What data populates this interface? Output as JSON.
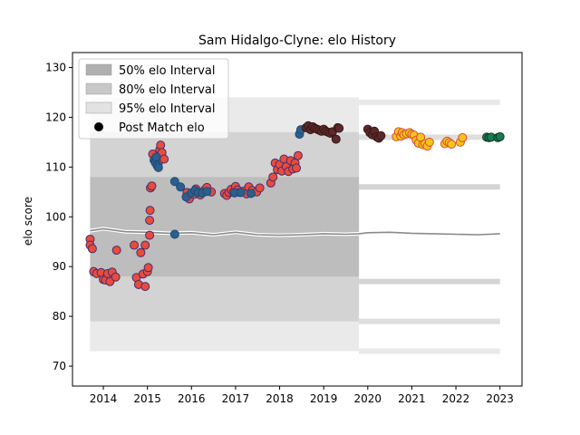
{
  "chart_data": {
    "type": "scatter",
    "title": "Sam Hidalgo-Clyne: elo History",
    "xlabel": "",
    "ylabel": "elo score",
    "xlim": [
      2013.3,
      2023.5
    ],
    "ylim": [
      66,
      133
    ],
    "xticks": [
      2014,
      2015,
      2016,
      2017,
      2018,
      2019,
      2020,
      2021,
      2022,
      2023
    ],
    "yticks": [
      70,
      80,
      90,
      100,
      110,
      120,
      130
    ],
    "grid": false,
    "legend": {
      "placement": "top-left",
      "entries": [
        {
          "label": "50% elo Interval",
          "color": "#b0b0b0"
        },
        {
          "label": "80% elo Interval",
          "color": "#c8c8c8"
        },
        {
          "label": "95% elo Interval",
          "color": "#e2e2e2"
        },
        {
          "label": "Post Match elo",
          "color": "#000000"
        }
      ]
    },
    "main_band": {
      "x_range": [
        2013.7,
        2019.8
      ],
      "interval_95": [
        73,
        124
      ],
      "interval_80": [
        79,
        117
      ],
      "interval_50": [
        88,
        108
      ],
      "median": 97
    },
    "side_band": {
      "x_range": [
        2019.8,
        2023.0
      ],
      "interval_95": [
        73,
        123
      ],
      "interval_80": [
        79,
        116
      ],
      "interval_50": [
        87,
        106
      ],
      "median": 96.5
    },
    "median_line": [
      [
        2013.7,
        97.2
      ],
      [
        2014.0,
        97.6
      ],
      [
        2014.5,
        97.0
      ],
      [
        2015.0,
        96.9
      ],
      [
        2015.5,
        96.7
      ],
      [
        2016.0,
        96.8
      ],
      [
        2016.5,
        96.4
      ],
      [
        2017.0,
        96.9
      ],
      [
        2017.5,
        96.4
      ],
      [
        2018.0,
        96.3
      ],
      [
        2018.5,
        96.4
      ],
      [
        2019.0,
        96.6
      ],
      [
        2019.5,
        96.5
      ],
      [
        2019.8,
        96.6
      ],
      [
        2020.0,
        96.8
      ],
      [
        2020.5,
        96.9
      ],
      [
        2021.0,
        96.7
      ],
      [
        2021.5,
        96.6
      ],
      [
        2022.0,
        96.5
      ],
      [
        2022.5,
        96.4
      ],
      [
        2023.0,
        96.6
      ]
    ],
    "series": [
      {
        "fill": "#e74c3c",
        "edge": "#4a2c6e",
        "points": [
          [
            2013.7,
            95.5
          ],
          [
            2013.7,
            94.3
          ],
          [
            2013.75,
            93.6
          ],
          [
            2013.78,
            89.0
          ],
          [
            2013.85,
            88.6
          ],
          [
            2013.95,
            88.8
          ],
          [
            2014.0,
            87.4
          ],
          [
            2014.05,
            87.3
          ],
          [
            2014.1,
            88.6
          ],
          [
            2014.15,
            87.0
          ],
          [
            2014.2,
            88.9
          ],
          [
            2014.28,
            87.9
          ],
          [
            2014.3,
            93.3
          ],
          [
            2014.7,
            94.3
          ],
          [
            2014.75,
            87.8
          ],
          [
            2014.8,
            86.4
          ],
          [
            2014.85,
            92.8
          ],
          [
            2014.9,
            88.5
          ],
          [
            2014.95,
            86.0
          ],
          [
            2014.95,
            94.3
          ],
          [
            2015.0,
            89.0
          ],
          [
            2015.02,
            89.8
          ],
          [
            2015.05,
            96.3
          ],
          [
            2015.05,
            99.3
          ],
          [
            2015.06,
            101.3
          ],
          [
            2015.07,
            105.8
          ],
          [
            2015.1,
            106.2
          ],
          [
            2015.12,
            112.6
          ],
          [
            2015.25,
            110.9
          ],
          [
            2015.28,
            113.5
          ],
          [
            2015.3,
            114.4
          ],
          [
            2015.33,
            112.9
          ],
          [
            2015.38,
            111.6
          ],
          [
            2015.9,
            104.9
          ],
          [
            2015.95,
            103.6
          ],
          [
            2016.05,
            104.5
          ],
          [
            2016.1,
            105.6
          ],
          [
            2016.2,
            104.4
          ],
          [
            2016.3,
            105.4
          ],
          [
            2016.35,
            105.9
          ],
          [
            2016.45,
            105.0
          ],
          [
            2016.75,
            104.7
          ],
          [
            2016.8,
            104.3
          ],
          [
            2016.85,
            104.9
          ],
          [
            2016.9,
            105.5
          ],
          [
            2016.95,
            104.9
          ],
          [
            2017.0,
            106.1
          ],
          [
            2017.05,
            105.4
          ],
          [
            2017.1,
            104.9
          ],
          [
            2017.2,
            105.2
          ],
          [
            2017.25,
            104.6
          ],
          [
            2017.3,
            106.0
          ],
          [
            2017.38,
            105.3
          ],
          [
            2017.48,
            105.0
          ],
          [
            2017.55,
            105.8
          ],
          [
            2017.8,
            106.8
          ],
          [
            2017.85,
            108.0
          ],
          [
            2017.9,
            110.8
          ],
          [
            2017.95,
            109.5
          ],
          [
            2018.0,
            110.5
          ],
          [
            2018.05,
            109.2
          ],
          [
            2018.1,
            111.6
          ],
          [
            2018.15,
            110.1
          ],
          [
            2018.2,
            109.1
          ],
          [
            2018.25,
            111.3
          ],
          [
            2018.3,
            109.6
          ],
          [
            2018.35,
            110.8
          ],
          [
            2018.38,
            109.8
          ],
          [
            2018.42,
            112.3
          ]
        ]
      },
      {
        "fill": "#2d5f8a",
        "edge": "#1a4a7a",
        "points": [
          [
            2015.15,
            111.4
          ],
          [
            2015.18,
            110.9
          ],
          [
            2015.2,
            112.0
          ],
          [
            2015.22,
            110.3
          ],
          [
            2015.25,
            109.9
          ],
          [
            2015.62,
            107.1
          ],
          [
            2015.62,
            96.5
          ],
          [
            2015.75,
            106.0
          ],
          [
            2015.88,
            104.0
          ],
          [
            2016.0,
            104.8
          ],
          [
            2016.08,
            105.3
          ],
          [
            2016.15,
            104.9
          ],
          [
            2016.25,
            104.8
          ],
          [
            2016.35,
            105.1
          ],
          [
            2016.98,
            104.8
          ],
          [
            2017.12,
            104.9
          ],
          [
            2017.35,
            104.7
          ],
          [
            2018.45,
            116.6
          ],
          [
            2018.48,
            117.5
          ]
        ]
      },
      {
        "fill": "#5a2a2a",
        "edge": "#3a1515",
        "points": [
          [
            2018.6,
            117.9
          ],
          [
            2018.65,
            118.3
          ],
          [
            2018.7,
            117.5
          ],
          [
            2018.75,
            118.1
          ],
          [
            2018.8,
            117.8
          ],
          [
            2018.85,
            117.6
          ],
          [
            2018.9,
            117.4
          ],
          [
            2018.95,
            117.2
          ],
          [
            2019.0,
            117.6
          ],
          [
            2019.05,
            117.2
          ],
          [
            2019.1,
            117.0
          ],
          [
            2019.15,
            116.8
          ],
          [
            2019.2,
            117.1
          ],
          [
            2019.28,
            115.6
          ],
          [
            2019.32,
            117.9
          ],
          [
            2019.35,
            117.8
          ],
          [
            2020.0,
            117.6
          ],
          [
            2020.05,
            116.9
          ],
          [
            2020.1,
            116.5
          ],
          [
            2020.15,
            117.2
          ],
          [
            2020.2,
            116.1
          ],
          [
            2020.25,
            115.8
          ],
          [
            2020.3,
            116.3
          ]
        ]
      },
      {
        "fill": "#f5c518",
        "edge": "#d94a3a",
        "points": [
          [
            2020.65,
            116.1
          ],
          [
            2020.7,
            117.1
          ],
          [
            2020.75,
            116.2
          ],
          [
            2020.78,
            116.9
          ],
          [
            2020.82,
            116.5
          ],
          [
            2020.88,
            116.7
          ],
          [
            2020.95,
            116.9
          ],
          [
            2021.0,
            116.6
          ],
          [
            2021.05,
            116.4
          ],
          [
            2021.1,
            115.4
          ],
          [
            2021.15,
            114.8
          ],
          [
            2021.2,
            116.0
          ],
          [
            2021.25,
            114.5
          ],
          [
            2021.3,
            114.7
          ],
          [
            2021.35,
            114.2
          ],
          [
            2021.4,
            115.0
          ],
          [
            2021.75,
            114.7
          ],
          [
            2021.8,
            115.2
          ],
          [
            2021.85,
            114.9
          ],
          [
            2021.9,
            114.6
          ],
          [
            2022.1,
            115.0
          ],
          [
            2022.15,
            115.9
          ]
        ]
      },
      {
        "fill": "#1a7a50",
        "edge": "#0a3a25",
        "points": [
          [
            2022.7,
            116.0
          ],
          [
            2022.75,
            115.9
          ],
          [
            2022.8,
            116.0
          ],
          [
            2022.95,
            115.9
          ],
          [
            2023.0,
            116.1
          ]
        ]
      }
    ]
  }
}
